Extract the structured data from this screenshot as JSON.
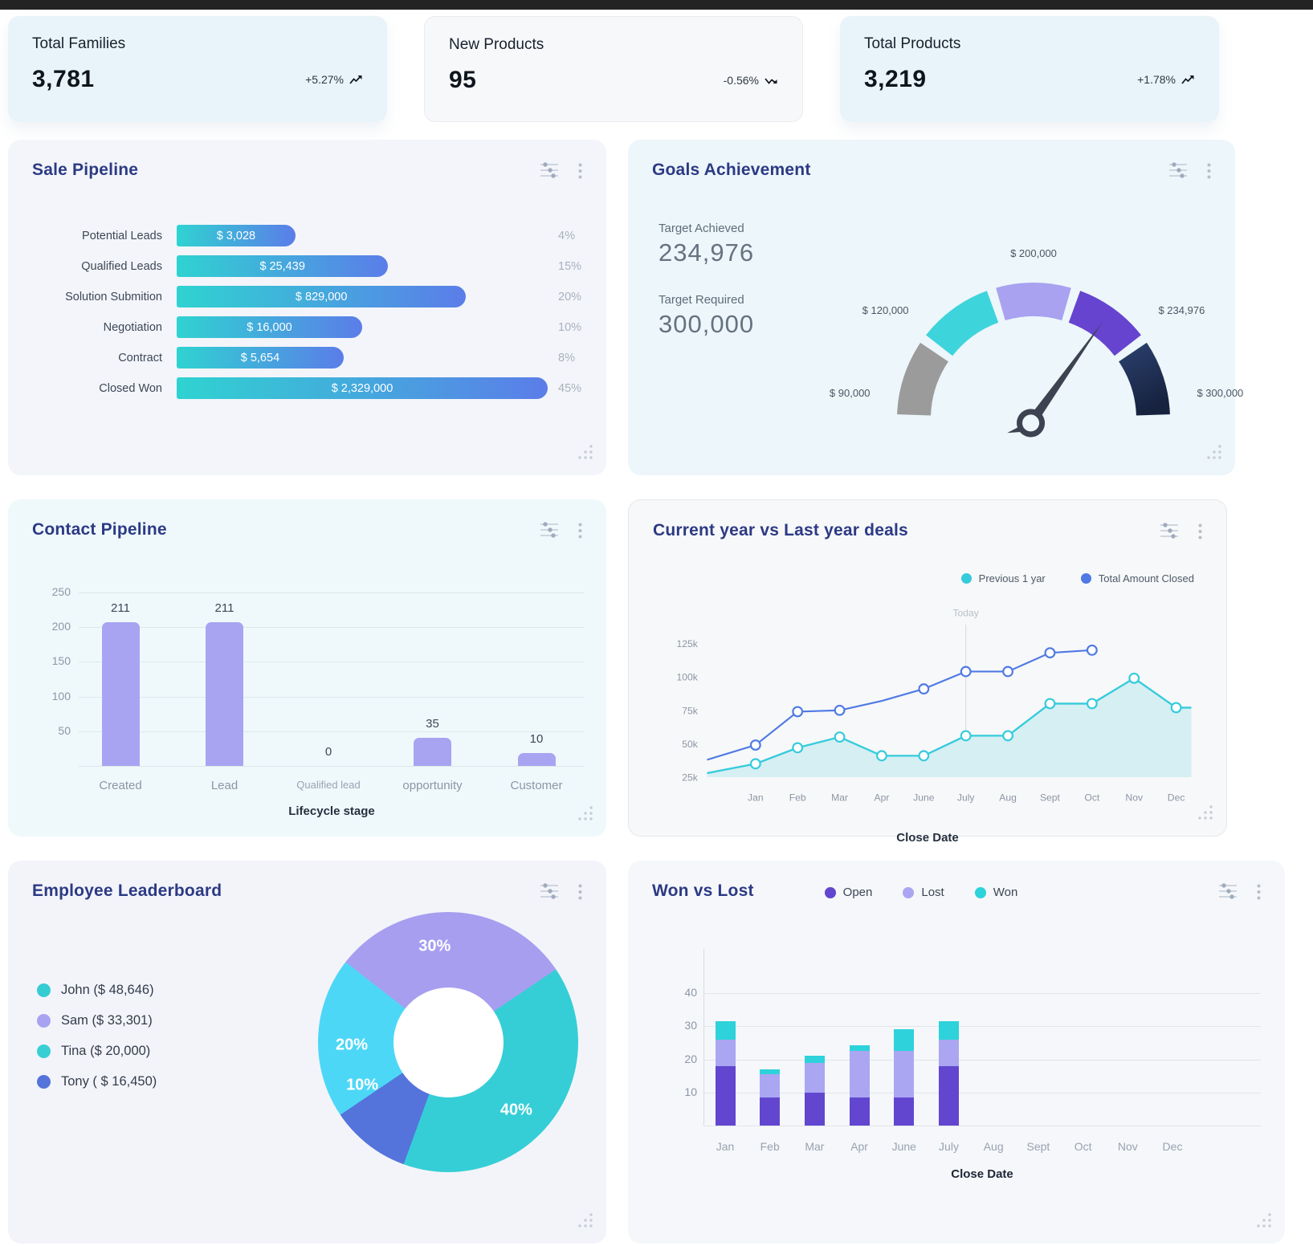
{
  "kpis": [
    {
      "label": "Total Families",
      "value": "3,781",
      "trend": "+5.27%",
      "direction": "up"
    },
    {
      "label": "New Products",
      "value": "95",
      "trend": "-0.56%",
      "direction": "down"
    },
    {
      "label": "Total Products",
      "value": "3,219",
      "trend": "+1.78%",
      "direction": "up"
    }
  ],
  "panels": {
    "sale_pipeline": {
      "title": "Sale Pipeline",
      "chart_data": {
        "type": "bar",
        "orientation": "horizontal",
        "bar_gradient": [
          "#2fd3d1",
          "#5b7de9"
        ],
        "rows": [
          {
            "label": "Potential Leads",
            "value": "$ 3,028",
            "pct": "4%",
            "width_pct": 32
          },
          {
            "label": "Qualified Leads",
            "value": "$ 25,439",
            "pct": "15%",
            "width_pct": 57
          },
          {
            "label": "Solution Submition",
            "value": "$ 829,000",
            "pct": "20%",
            "width_pct": 78
          },
          {
            "label": "Negotiation",
            "value": "$ 16,000",
            "pct": "10%",
            "width_pct": 50
          },
          {
            "label": "Contract",
            "value": "$ 5,654",
            "pct": "8%",
            "width_pct": 45
          },
          {
            "label": "Closed Won",
            "value": "$ 2,329,000",
            "pct": "45%",
            "width_pct": 100
          }
        ]
      }
    },
    "goals": {
      "title": "Goals Achievement",
      "achieved_label": "Target Achieved",
      "achieved_value": "234,976",
      "required_label": "Target Required",
      "required_value": "300,000",
      "chart_data": {
        "type": "gauge",
        "span_deg": 180,
        "needle_angle_from_north": 35,
        "segments": [
          {
            "label": "$ 90,000",
            "color": "#9b9b9b",
            "label_angle": 171
          },
          {
            "label": "$ 120,000",
            "color": "#3ed4dc",
            "label_angle": 139
          },
          {
            "label": "$ 200,000",
            "color": "#a8a2f0",
            "label_angle": 90
          },
          {
            "label": "$ 234,976",
            "color": "#6644cf",
            "label_angle": 41
          },
          {
            "label": "$ 300,000",
            "color": "#243a63",
            "label_angle": 9
          }
        ]
      }
    },
    "contact_pipeline": {
      "title": "Contact Pipeline",
      "chart_data": {
        "type": "bar",
        "categories": [
          "Created",
          "Lead",
          "Qualified lead",
          "opportunity",
          "Customer"
        ],
        "values": [
          211,
          211,
          0,
          35,
          10
        ],
        "value_labels": [
          "211",
          "211",
          "0",
          "35",
          "10"
        ],
        "display_values": [
          207,
          207,
          0,
          41,
          19
        ],
        "yticks": [
          50,
          100,
          150,
          200,
          250
        ],
        "ylim": [
          0,
          275
        ],
        "xlabel": "Lifecycle stage",
        "bar_color": "#a8a4f2"
      }
    },
    "deals": {
      "title": "Current year vs Last year deals",
      "today_label": "Today",
      "today_x": "July",
      "xlabel": "Close Date",
      "chart_data": {
        "type": "line",
        "x": [
          "Jan",
          "Feb",
          "Mar",
          "Apr",
          "June",
          "July",
          "Aug",
          "Sept",
          "Oct",
          "Nov",
          "Dec"
        ],
        "yticks": [
          "25k",
          "50k",
          "75k",
          "100k",
          "125k"
        ],
        "ylim_k": [
          25,
          137
        ],
        "series": [
          {
            "name": "Previous 1 yar",
            "color": "#35cbdc",
            "fill": "#d5eff3",
            "edge_start": 28,
            "edge_end": 77,
            "values": [
              35,
              47,
              55,
              41,
              41,
              56,
              56,
              80,
              80,
              99,
              77
            ]
          },
          {
            "name": "Total Amount Closed",
            "color": "#4f7ae4",
            "edge_start": 38,
            "no_marker": [
              "Apr"
            ],
            "values": [
              49,
              74,
              75,
              82,
              91,
              104,
              104,
              118,
              120,
              null,
              null
            ]
          }
        ]
      }
    },
    "leaderboard": {
      "title": "Employee Leaderboard",
      "legend": [
        {
          "label": "John ($ 48,646)",
          "color": "#35ccd4"
        },
        {
          "label": "Sam ($ 33,301)",
          "color": "#a8a3f0"
        },
        {
          "label": "Tina ($ 20,000)",
          "color": "#38cfd4"
        },
        {
          "label": "Tony ( $ 16,450)",
          "color": "#5474dc"
        }
      ],
      "chart_data": {
        "type": "pie",
        "start_angle": -52,
        "hole_ratio": 0.42,
        "slices": [
          {
            "name": "Sam",
            "pct": 30,
            "color": "#a79ef0",
            "label": "30%",
            "label_angle": 352
          },
          {
            "name": "John",
            "pct": 40,
            "color": "#35ced6",
            "label": "40%",
            "label_angle": 135
          },
          {
            "name": "Tony",
            "pct": 10,
            "color": "#5474dc",
            "label": "10%",
            "label_angle": 243
          },
          {
            "name": "Tina",
            "pct": 20,
            "color": "#4dd7f7",
            "label": "20%",
            "label_angle": 268
          }
        ]
      }
    },
    "won_lost": {
      "title": "Won vs Lost",
      "xlabel": "Close Date",
      "chart_data": {
        "type": "bar",
        "stacked": true,
        "categories": [
          "Jan",
          "Feb",
          "Mar",
          "Apr",
          "June",
          "July",
          "Aug",
          "Sept",
          "Oct",
          "Nov",
          "Dec"
        ],
        "yticks": [
          10,
          20,
          30,
          40
        ],
        "ylim": [
          0,
          44
        ],
        "series": [
          {
            "name": "Open",
            "color": "#6246cf",
            "values": [
              18,
              8.5,
              10,
              8.5,
              8.5,
              18,
              0,
              0,
              0,
              0,
              0
            ]
          },
          {
            "name": "Lost",
            "color": "#aaa6f2",
            "values": [
              8,
              7,
              9,
              14,
              14,
              8,
              0,
              0,
              0,
              0,
              0
            ]
          },
          {
            "name": "Won",
            "color": "#2ed2da",
            "values": [
              5.5,
              1.5,
              2.2,
              1.8,
              6.5,
              5.5,
              0,
              0,
              0,
              0,
              0
            ]
          }
        ]
      }
    }
  }
}
